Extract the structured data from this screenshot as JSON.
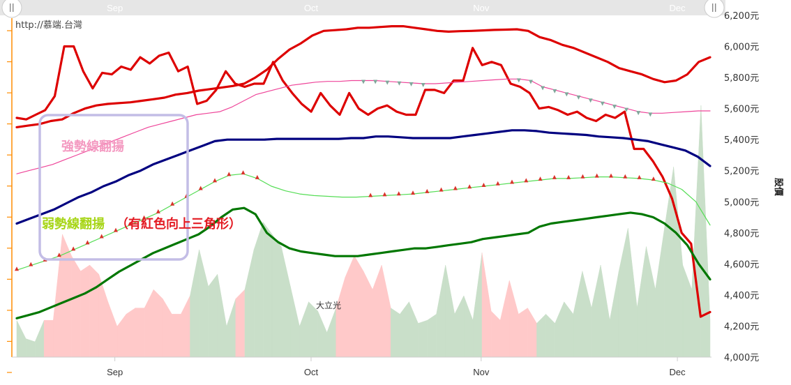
{
  "source_text": "http://慕端.台灣",
  "annotations": {
    "strong_label": "強勢線翻揚",
    "weak_label": "弱勢線翻揚",
    "weak_note": "（有紅色向上三角形）",
    "point_label": "大立光"
  },
  "chart_data": {
    "type": "line",
    "ylabel": "股價",
    "yticks": [
      "6,200元",
      "6,000元",
      "5,800元",
      "5,600元",
      "5,400元",
      "5,200元",
      "5,000元",
      "4,800元",
      "4,600元",
      "4,400元",
      "4,200元",
      "4,000元"
    ],
    "ylim": [
      4000,
      6200
    ],
    "months": [
      {
        "label": "Sep",
        "index": 7.5
      },
      {
        "label": "Oct",
        "index": 22.5
      },
      {
        "label": "Nov",
        "index": 35.5
      },
      {
        "label": "Dec",
        "index": 50.5
      }
    ],
    "x_count": 54,
    "series": [
      {
        "key": "upper",
        "color": "#dd0000",
        "width": 3.2,
        "values": [
          5480,
          5490,
          5500,
          5520,
          5530,
          5570,
          5600,
          5620,
          5630,
          5635,
          5640,
          5650,
          5660,
          5670,
          5690,
          5700,
          5715,
          5725,
          5735,
          5745,
          5760,
          5800,
          5850,
          5920,
          5980,
          6020,
          6070,
          6100,
          6105,
          6110,
          6120,
          6120,
          6125,
          6130,
          6130,
          6120,
          6110,
          6100,
          6095,
          6098,
          6100,
          6103,
          6106,
          6108,
          6110,
          6100,
          6060,
          6040,
          6010,
          5990,
          5960,
          5930,
          5900,
          5860,
          5840,
          5820,
          5790,
          5770,
          5780,
          5820,
          5900,
          5930
        ]
      },
      {
        "key": "price_upper",
        "color": "#dd0000",
        "width": 3.2,
        "values": [
          5540,
          5530,
          5560,
          5590,
          5680,
          6000,
          6000,
          5840,
          5730,
          5830,
          5820,
          5870,
          5850,
          5930,
          5890,
          5940,
          5960,
          5840,
          5870,
          5630,
          5650,
          5720,
          5840,
          5760,
          5740,
          5760,
          5760,
          5900,
          5780,
          5700,
          5630,
          5580,
          5700,
          5620,
          5560,
          5700,
          5600,
          5560,
          5600,
          5620,
          5580,
          5560,
          5560,
          5720,
          5720,
          5700,
          5780,
          5780,
          5990,
          5880,
          5900,
          5880,
          5760,
          5740,
          5700,
          5600,
          5610,
          5590,
          5560,
          5580,
          5540,
          5520,
          5560,
          5540,
          5580,
          5340,
          5340,
          5260,
          5160,
          5020,
          4800,
          4730,
          4260,
          4290
        ]
      },
      {
        "key": "mid",
        "color": "#000080",
        "width": 3.2,
        "values": [
          4860,
          4890,
          4920,
          4950,
          4990,
          5030,
          5060,
          5100,
          5130,
          5170,
          5200,
          5240,
          5270,
          5300,
          5330,
          5360,
          5390,
          5400,
          5400,
          5400,
          5400,
          5405,
          5405,
          5405,
          5405,
          5405,
          5405,
          5410,
          5410,
          5420,
          5420,
          5415,
          5410,
          5410,
          5410,
          5410,
          5420,
          5430,
          5440,
          5450,
          5460,
          5460,
          5455,
          5445,
          5440,
          5435,
          5430,
          5420,
          5415,
          5410,
          5400,
          5390,
          5370,
          5350,
          5330,
          5290,
          5230
        ]
      },
      {
        "key": "strong_pink",
        "color": "#ee4499",
        "width": 1.2,
        "values": [
          5180,
          5200,
          5220,
          5240,
          5270,
          5300,
          5330,
          5360,
          5390,
          5420,
          5450,
          5480,
          5500,
          5520,
          5540,
          5560,
          5570,
          5580,
          5610,
          5650,
          5690,
          5710,
          5730,
          5750,
          5760,
          5770,
          5775,
          5775,
          5780,
          5780,
          5780,
          5775,
          5770,
          5765,
          5760,
          5760,
          5765,
          5770,
          5775,
          5780,
          5785,
          5790,
          5790,
          5780,
          5740,
          5720,
          5700,
          5680,
          5660,
          5640,
          5620,
          5600,
          5580,
          5570,
          5570,
          5575,
          5580,
          5585,
          5585
        ]
      },
      {
        "key": "weak_lightgreen",
        "color": "#55dd55",
        "width": 1.2,
        "values": [
          4560,
          4590,
          4620,
          4650,
          4690,
          4730,
          4770,
          4810,
          4850,
          4890,
          4930,
          4980,
          5030,
          5080,
          5130,
          5170,
          5180,
          5150,
          5100,
          5070,
          5050,
          5040,
          5035,
          5030,
          5030,
          5035,
          5040,
          5045,
          5050,
          5060,
          5070,
          5080,
          5090,
          5100,
          5110,
          5120,
          5130,
          5140,
          5150,
          5150,
          5155,
          5160,
          5160,
          5155,
          5150,
          5140,
          5120,
          5080,
          5000,
          4850
        ]
      },
      {
        "key": "lower",
        "color": "#007700",
        "width": 3.2,
        "values": [
          4250,
          4270,
          4290,
          4320,
          4350,
          4380,
          4410,
          4450,
          4500,
          4550,
          4590,
          4630,
          4670,
          4700,
          4730,
          4760,
          4790,
          4840,
          4900,
          4950,
          4960,
          4920,
          4800,
          4740,
          4700,
          4680,
          4670,
          4660,
          4650,
          4650,
          4650,
          4660,
          4670,
          4680,
          4690,
          4700,
          4700,
          4710,
          4720,
          4730,
          4740,
          4760,
          4770,
          4780,
          4790,
          4800,
          4840,
          4860,
          4870,
          4880,
          4890,
          4900,
          4910,
          4920,
          4930,
          4920,
          4900,
          4860,
          4800,
          4720,
          4600,
          4500
        ]
      },
      {
        "key": "price_lower",
        "color": "#006600",
        "width": 3.2,
        "values": [
          null
        ]
      }
    ],
    "volume": [
      {
        "color": "green",
        "v": 0.12
      },
      {
        "color": "green",
        "v": 0.06
      },
      {
        "color": "green",
        "v": 0.05
      },
      {
        "color": "red",
        "v": 0.12
      },
      {
        "color": "red",
        "v": 0.12
      },
      {
        "color": "red",
        "v": 0.4
      },
      {
        "color": "red",
        "v": 0.33
      },
      {
        "color": "red",
        "v": 0.28
      },
      {
        "color": "red",
        "v": 0.3
      },
      {
        "color": "red",
        "v": 0.27
      },
      {
        "color": "red",
        "v": 0.18
      },
      {
        "color": "red",
        "v": 0.1
      },
      {
        "color": "red",
        "v": 0.14
      },
      {
        "color": "red",
        "v": 0.16
      },
      {
        "color": "red",
        "v": 0.16
      },
      {
        "color": "red",
        "v": 0.22
      },
      {
        "color": "red",
        "v": 0.19
      },
      {
        "color": "red",
        "v": 0.14
      },
      {
        "color": "red",
        "v": 0.14
      },
      {
        "color": "green",
        "v": 0.2
      },
      {
        "color": "green",
        "v": 0.35
      },
      {
        "color": "green",
        "v": 0.23
      },
      {
        "color": "green",
        "v": 0.27
      },
      {
        "color": "green",
        "v": 0.1
      },
      {
        "color": "red",
        "v": 0.19
      },
      {
        "color": "green",
        "v": 0.22
      },
      {
        "color": "green",
        "v": 0.35
      },
      {
        "color": "green",
        "v": 0.44
      },
      {
        "color": "green",
        "v": 0.4
      },
      {
        "color": "green",
        "v": 0.36
      },
      {
        "color": "green",
        "v": 0.23
      },
      {
        "color": "green",
        "v": 0.1
      },
      {
        "color": "green",
        "v": 0.18
      },
      {
        "color": "green",
        "v": 0.15
      },
      {
        "color": "green",
        "v": 0.08
      },
      {
        "color": "red",
        "v": 0.16
      },
      {
        "color": "red",
        "v": 0.26
      },
      {
        "color": "red",
        "v": 0.33
      },
      {
        "color": "red",
        "v": 0.28
      },
      {
        "color": "red",
        "v": 0.22
      },
      {
        "color": "red",
        "v": 0.3
      },
      {
        "color": "green",
        "v": 0.16
      },
      {
        "color": "green",
        "v": 0.14
      },
      {
        "color": "green",
        "v": 0.18
      },
      {
        "color": "green",
        "v": 0.11
      },
      {
        "color": "green",
        "v": 0.12
      },
      {
        "color": "green",
        "v": 0.14
      },
      {
        "color": "green",
        "v": 0.3
      },
      {
        "color": "green",
        "v": 0.14
      },
      {
        "color": "green",
        "v": 0.2
      },
      {
        "color": "green",
        "v": 0.12
      },
      {
        "color": "red",
        "v": 0.34
      },
      {
        "color": "red",
        "v": 0.15
      },
      {
        "color": "red",
        "v": 0.12
      },
      {
        "color": "red",
        "v": 0.25
      },
      {
        "color": "red",
        "v": 0.14
      },
      {
        "color": "red",
        "v": 0.16
      },
      {
        "color": "green",
        "v": 0.11
      },
      {
        "color": "green",
        "v": 0.14
      },
      {
        "color": "green",
        "v": 0.11
      },
      {
        "color": "green",
        "v": 0.18
      },
      {
        "color": "green",
        "v": 0.14
      },
      {
        "color": "green",
        "v": 0.28
      },
      {
        "color": "green",
        "v": 0.16
      },
      {
        "color": "green",
        "v": 0.3
      },
      {
        "color": "green",
        "v": 0.12
      },
      {
        "color": "green",
        "v": 0.28
      },
      {
        "color": "green",
        "v": 0.42
      },
      {
        "color": "green",
        "v": 0.16
      },
      {
        "color": "green",
        "v": 0.36
      },
      {
        "color": "green",
        "v": 0.22
      },
      {
        "color": "green",
        "v": 0.42
      },
      {
        "color": "green",
        "v": 0.62
      },
      {
        "color": "green",
        "v": 0.3
      },
      {
        "color": "green",
        "v": 0.22
      },
      {
        "color": "green",
        "v": 0.82
      },
      {
        "color": "green",
        "v": 0.12
      }
    ]
  }
}
